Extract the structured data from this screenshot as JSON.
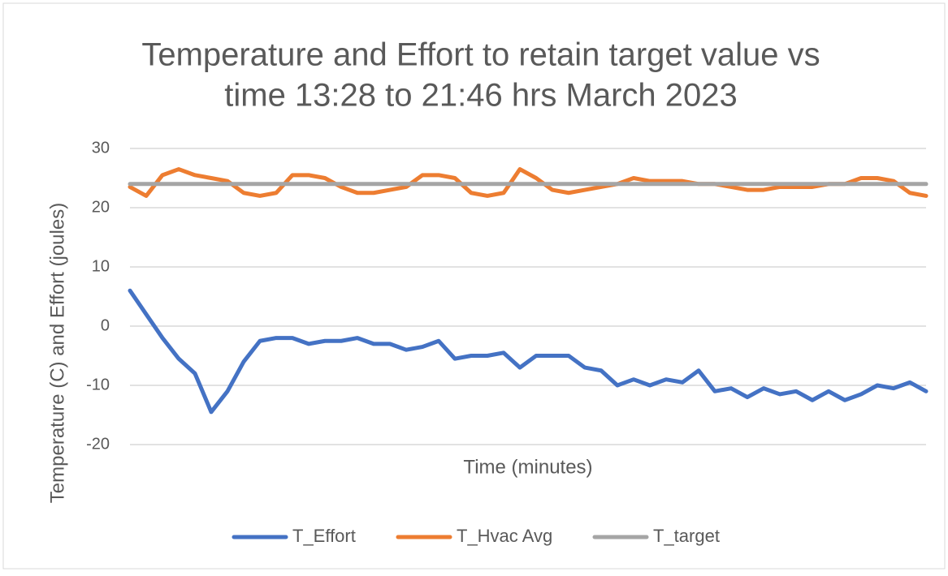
{
  "chart_data": {
    "type": "line",
    "title": [
      "Temperature and Effort to retain target value vs",
      "time 13:28 to 21:46 hrs March 2023"
    ],
    "x_label": "Time (minutes)",
    "y_label": "Temperature (C) and Effort (joules)",
    "categories": [
      null,
      null,
      null,
      null,
      null,
      null,
      null,
      null,
      null,
      null,
      null,
      null,
      null,
      null,
      null,
      null,
      null,
      null,
      null,
      null,
      null,
      null,
      null,
      null,
      null,
      null,
      null,
      null,
      null,
      null,
      null,
      null,
      null,
      null,
      null,
      null,
      null,
      null,
      null,
      null,
      null,
      null,
      null,
      null,
      null,
      null,
      null,
      null,
      null,
      null
    ],
    "series": [
      {
        "name": "T_Effort",
        "color": "#4472c4",
        "values": [
          6,
          2,
          -2,
          -5.5,
          -8,
          -14.5,
          -11,
          -6,
          -2.5,
          -2,
          -2,
          -3,
          -2.5,
          -2.5,
          -2,
          -3,
          -3,
          -4,
          -3.5,
          -2.5,
          -5.5,
          -5,
          -5,
          -4.5,
          -7,
          -5,
          -5,
          -5,
          -7,
          -7.5,
          -10,
          -9,
          -10,
          -9,
          -9.5,
          -7.5,
          -11,
          -10.5,
          -12,
          -10.5,
          -11.5,
          -11,
          -12.5,
          -11,
          -12.5,
          -11.5,
          -10,
          -10.5,
          -9.5,
          -11
        ]
      },
      {
        "name": "T_Hvac Avg",
        "color": "#ed7d31",
        "values": [
          23.5,
          22,
          25.5,
          26.5,
          25.5,
          25,
          24.5,
          22.5,
          22,
          22.5,
          25.5,
          25.5,
          25,
          23.5,
          22.5,
          22.5,
          23,
          23.5,
          25.5,
          25.5,
          25,
          22.5,
          22,
          22.5,
          26.5,
          25,
          23,
          22.5,
          23,
          23.5,
          24,
          25,
          24.5,
          24.5,
          24.5,
          24,
          24,
          23.5,
          23,
          23,
          23.5,
          23.5,
          23.5,
          24,
          24,
          25,
          25,
          24.5,
          22.5,
          22
        ]
      },
      {
        "name": "T_target",
        "color": "#a5a5a5",
        "values": [
          24,
          24,
          24,
          24,
          24,
          24,
          24,
          24,
          24,
          24,
          24,
          24,
          24,
          24,
          24,
          24,
          24,
          24,
          24,
          24,
          24,
          24,
          24,
          24,
          24,
          24,
          24,
          24,
          24,
          24,
          24,
          24,
          24,
          24,
          24,
          24,
          24,
          24,
          24,
          24,
          24,
          24,
          24,
          24,
          24,
          24,
          24,
          24,
          24,
          24
        ]
      }
    ],
    "ylim": [
      -20,
      30
    ],
    "yticks": [
      -20,
      -10,
      0,
      10,
      20,
      30
    ],
    "grid": true,
    "legend": "bottom"
  }
}
